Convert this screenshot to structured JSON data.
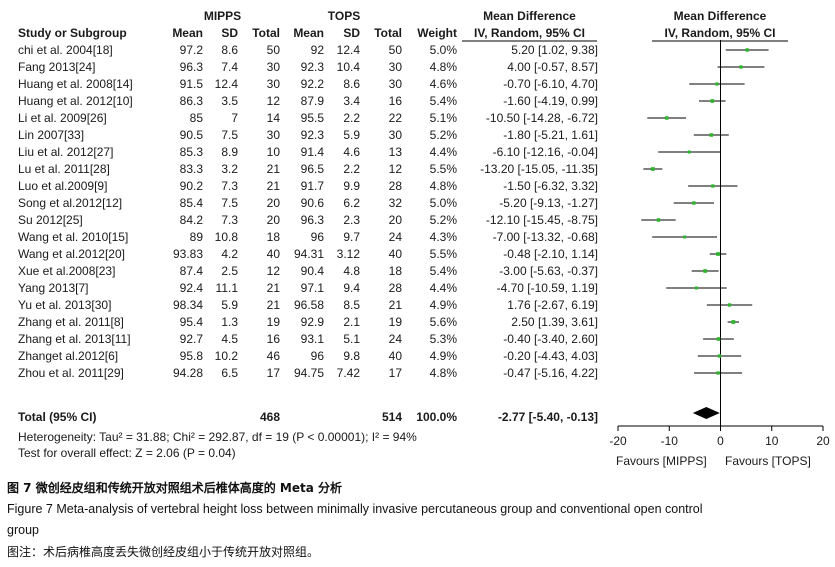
{
  "header": {
    "group1": "MIPPS",
    "group2": "TOPS",
    "md_title": "Mean Difference",
    "md_sub": "IV, Random, 95% CI",
    "col_study": "Study or Subgroup",
    "col_mean1": "Mean",
    "col_sd1": "SD",
    "col_total1": "Total",
    "col_mean2": "Mean",
    "col_sd2": "SD",
    "col_total2": "Total",
    "col_weight": "Weight"
  },
  "rows": [
    {
      "study": "chi et al. 2004[18]",
      "m1": "97.2",
      "sd1": "8.6",
      "n1": "50",
      "m2": "92",
      "sd2": "12.4",
      "n2": "50",
      "w": "5.0%",
      "ci": "5.20 [1.02, 9.38]"
    },
    {
      "study": "Fang 2013[24]",
      "m1": "96.3",
      "sd1": "7.4",
      "n1": "30",
      "m2": "92.3",
      "sd2": "10.4",
      "n2": "30",
      "w": "4.8%",
      "ci": "4.00 [-0.57, 8.57]"
    },
    {
      "study": "Huang et al. 2008[14]",
      "m1": "91.5",
      "sd1": "12.4",
      "n1": "30",
      "m2": "92.2",
      "sd2": "8.6",
      "n2": "30",
      "w": "4.6%",
      "ci": "-0.70 [-6.10, 4.70]"
    },
    {
      "study": "Huang et al. 2012[10]",
      "m1": "86.3",
      "sd1": "3.5",
      "n1": "12",
      "m2": "87.9",
      "sd2": "3.4",
      "n2": "16",
      "w": "5.4%",
      "ci": "-1.60 [-4.19, 0.99]"
    },
    {
      "study": "Li  et al. 2009[26]",
      "m1": "85",
      "sd1": "7",
      "n1": "14",
      "m2": "95.5",
      "sd2": "2.2",
      "n2": "22",
      "w": "5.1%",
      "ci": "-10.50 [-14.28, -6.72]"
    },
    {
      "study": "Lin 2007[33]",
      "m1": "90.5",
      "sd1": "7.5",
      "n1": "30",
      "m2": "92.3",
      "sd2": "5.9",
      "n2": "30",
      "w": "5.2%",
      "ci": "-1.80 [-5.21, 1.61]"
    },
    {
      "study": "Liu et al. 2012[27]",
      "m1": "85.3",
      "sd1": "8.9",
      "n1": "10",
      "m2": "91.4",
      "sd2": "4.6",
      "n2": "13",
      "w": "4.4%",
      "ci": "-6.10 [-12.16, -0.04]"
    },
    {
      "study": "Lu et al. 2011[28]",
      "m1": "83.3",
      "sd1": "3.2",
      "n1": "21",
      "m2": "96.5",
      "sd2": "2.2",
      "n2": "12",
      "w": "5.5%",
      "ci": "-13.20 [-15.05, -11.35]"
    },
    {
      "study": "Luo et al.2009[9]",
      "m1": "90.2",
      "sd1": "7.3",
      "n1": "21",
      "m2": "91.7",
      "sd2": "9.9",
      "n2": "28",
      "w": "4.8%",
      "ci": "-1.50 [-6.32, 3.32]"
    },
    {
      "study": "Song  et al.2012[12]",
      "m1": "85.4",
      "sd1": "7.5",
      "n1": "20",
      "m2": "90.6",
      "sd2": "6.2",
      "n2": "32",
      "w": "5.0%",
      "ci": "-5.20 [-9.13, -1.27]"
    },
    {
      "study": "Su 2012[25]",
      "m1": "84.2",
      "sd1": "7.3",
      "n1": "20",
      "m2": "96.3",
      "sd2": "2.3",
      "n2": "20",
      "w": "5.2%",
      "ci": "-12.10 [-15.45, -8.75]"
    },
    {
      "study": "Wang et al. 2010[15]",
      "m1": "89",
      "sd1": "10.8",
      "n1": "18",
      "m2": "96",
      "sd2": "9.7",
      "n2": "24",
      "w": "4.3%",
      "ci": "-7.00 [-13.32, -0.68]"
    },
    {
      "study": "Wang et al.2012[20]",
      "m1": "93.83",
      "sd1": "4.2",
      "n1": "40",
      "m2": "94.31",
      "sd2": "3.12",
      "n2": "40",
      "w": "5.5%",
      "ci": "-0.48 [-2.10, 1.14]"
    },
    {
      "study": "Xue et al.2008[23]",
      "m1": "87.4",
      "sd1": "2.5",
      "n1": "12",
      "m2": "90.4",
      "sd2": "4.8",
      "n2": "18",
      "w": "5.4%",
      "ci": "-3.00 [-5.63, -0.37]"
    },
    {
      "study": "Yang 2013[7]",
      "m1": "92.4",
      "sd1": "11.1",
      "n1": "21",
      "m2": "97.1",
      "sd2": "9.4",
      "n2": "28",
      "w": "4.4%",
      "ci": "-4.70 [-10.59, 1.19]"
    },
    {
      "study": "Yu et al. 2013[30]",
      "m1": "98.34",
      "sd1": "5.9",
      "n1": "21",
      "m2": "96.58",
      "sd2": "8.5",
      "n2": "21",
      "w": "4.9%",
      "ci": "1.76 [-2.67, 6.19]"
    },
    {
      "study": "Zhang et al. 2011[8]",
      "m1": "95.4",
      "sd1": "1.3",
      "n1": "19",
      "m2": "92.9",
      "sd2": "2.1",
      "n2": "19",
      "w": "5.6%",
      "ci": "2.50 [1.39, 3.61]"
    },
    {
      "study": "Zhang et al. 2013[11]",
      "m1": "92.7",
      "sd1": "4.5",
      "n1": "16",
      "m2": "93.1",
      "sd2": "5.1",
      "n2": "24",
      "w": "5.3%",
      "ci": "-0.40 [-3.40, 2.60]"
    },
    {
      "study": "Zhanget al.2012[6]",
      "m1": "95.8",
      "sd1": "10.2",
      "n1": "46",
      "m2": "96",
      "sd2": "9.8",
      "n2": "40",
      "w": "4.9%",
      "ci": "-0.20 [-4.43, 4.03]"
    },
    {
      "study": "Zhou  et al. 2011[29]",
      "m1": "94.28",
      "sd1": "6.5",
      "n1": "17",
      "m2": "94.75",
      "sd2": "7.42",
      "n2": "17",
      "w": "4.8%",
      "ci": "-0.47 [-5.16, 4.22]"
    }
  ],
  "total": {
    "label": "Total (95% CI)",
    "n1": "468",
    "n2": "514",
    "w": "100.0%",
    "ci": "-2.77 [-5.40, -0.13]"
  },
  "heterogeneity": "Heterogeneity: Tau² = 31.88; Chi² = 292.87, df = 19 (P < 0.00001); I² = 94%",
  "overall_test": "Test for overall effect: Z = 2.06 (P = 0.04)",
  "favours_left": "Favours [MIPPS]",
  "favours_right": "Favours [TOPS]",
  "caption_cn": "图 7  微创经皮组和传统开放对照组术后椎体高度的 Meta 分析",
  "caption_en_1": "Figure 7    Meta-analysis of vertebral height loss between minimally invasive percutaneous group and conventional open control",
  "caption_en_2": "group",
  "note_cn": "图注：术后病椎高度丢失微创经皮组小于传统开放对照组。",
  "colors": {
    "point": "#2db52d",
    "line": "#000000",
    "diamond": "#000000"
  },
  "chart_data": {
    "type": "forest",
    "title": "Mean Difference",
    "subtitle": "IV, Random, 95% CI",
    "xlim": [
      -20,
      20
    ],
    "xticks": [
      -20,
      -10,
      0,
      10,
      20
    ],
    "xlabel_left": "Favours [MIPPS]",
    "xlabel_right": "Favours [TOPS]",
    "studies": [
      {
        "name": "chi et al. 2004[18]",
        "md": 5.2,
        "lo": 1.02,
        "hi": 9.38,
        "weight": 5.0
      },
      {
        "name": "Fang 2013[24]",
        "md": 4.0,
        "lo": -0.57,
        "hi": 8.57,
        "weight": 4.8
      },
      {
        "name": "Huang et al. 2008[14]",
        "md": -0.7,
        "lo": -6.1,
        "hi": 4.7,
        "weight": 4.6
      },
      {
        "name": "Huang et al. 2012[10]",
        "md": -1.6,
        "lo": -4.19,
        "hi": 0.99,
        "weight": 5.4
      },
      {
        "name": "Li  et al. 2009[26]",
        "md": -10.5,
        "lo": -14.28,
        "hi": -6.72,
        "weight": 5.1
      },
      {
        "name": "Lin 2007[33]",
        "md": -1.8,
        "lo": -5.21,
        "hi": 1.61,
        "weight": 5.2
      },
      {
        "name": "Liu et al. 2012[27]",
        "md": -6.1,
        "lo": -12.16,
        "hi": -0.04,
        "weight": 4.4
      },
      {
        "name": "Lu et al. 2011[28]",
        "md": -13.2,
        "lo": -15.05,
        "hi": -11.35,
        "weight": 5.5
      },
      {
        "name": "Luo et al.2009[9]",
        "md": -1.5,
        "lo": -6.32,
        "hi": 3.32,
        "weight": 4.8
      },
      {
        "name": "Song  et al.2012[12]",
        "md": -5.2,
        "lo": -9.13,
        "hi": -1.27,
        "weight": 5.0
      },
      {
        "name": "Su 2012[25]",
        "md": -12.1,
        "lo": -15.45,
        "hi": -8.75,
        "weight": 5.2
      },
      {
        "name": "Wang et al. 2010[15]",
        "md": -7.0,
        "lo": -13.32,
        "hi": -0.68,
        "weight": 4.3
      },
      {
        "name": "Wang et al.2012[20]",
        "md": -0.48,
        "lo": -2.1,
        "hi": 1.14,
        "weight": 5.5
      },
      {
        "name": "Xue et al.2008[23]",
        "md": -3.0,
        "lo": -5.63,
        "hi": -0.37,
        "weight": 5.4
      },
      {
        "name": "Yang 2013[7]",
        "md": -4.7,
        "lo": -10.59,
        "hi": 1.19,
        "weight": 4.4
      },
      {
        "name": "Yu et al. 2013[30]",
        "md": 1.76,
        "lo": -2.67,
        "hi": 6.19,
        "weight": 4.9
      },
      {
        "name": "Zhang et al. 2011[8]",
        "md": 2.5,
        "lo": 1.39,
        "hi": 3.61,
        "weight": 5.6
      },
      {
        "name": "Zhang et al. 2013[11]",
        "md": -0.4,
        "lo": -3.4,
        "hi": 2.6,
        "weight": 5.3
      },
      {
        "name": "Zhanget al.2012[6]",
        "md": -0.2,
        "lo": -4.43,
        "hi": 4.03,
        "weight": 4.9
      },
      {
        "name": "Zhou  et al. 2011[29]",
        "md": -0.47,
        "lo": -5.16,
        "hi": 4.22,
        "weight": 4.8
      }
    ],
    "overall": {
      "md": -2.77,
      "lo": -5.4,
      "hi": -0.13
    }
  }
}
